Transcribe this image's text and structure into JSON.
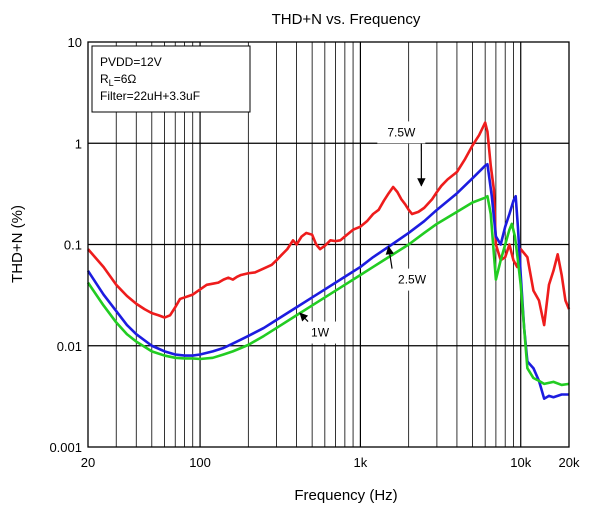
{
  "chart_data": {
    "type": "line",
    "title": "THD+N vs. Frequency",
    "xlabel": "Frequency (Hz)",
    "ylabel": "THD+N (%)",
    "x_scale": "log",
    "y_scale": "log",
    "xlim": [
      20,
      20000
    ],
    "ylim": [
      0.001,
      10
    ],
    "grid": true,
    "x_ticks": [
      {
        "value": 20,
        "label": "20"
      },
      {
        "value": 100,
        "label": "100"
      },
      {
        "value": 1000,
        "label": "1k"
      },
      {
        "value": 10000,
        "label": "10k"
      },
      {
        "value": 20000,
        "label": "20k"
      }
    ],
    "y_ticks": [
      {
        "value": 0.001,
        "label": "0.001"
      },
      {
        "value": 0.01,
        "label": "0.01"
      },
      {
        "value": 0.1,
        "label": "0.1"
      },
      {
        "value": 1,
        "label": "1"
      },
      {
        "value": 10,
        "label": "10"
      }
    ],
    "legend_box": {
      "placement": "top-left",
      "lines": [
        {
          "main": "PVDD=12V",
          "sub": ""
        },
        {
          "main": "R",
          "sub": "L",
          "after": "=6Ω"
        },
        {
          "main": "Filter=22uH+3.3uF",
          "sub": ""
        }
      ]
    },
    "series": [
      {
        "name": "7.5W",
        "color": "#ee1c1c",
        "points": [
          [
            20,
            0.09
          ],
          [
            25,
            0.06
          ],
          [
            30,
            0.04
          ],
          [
            35,
            0.031
          ],
          [
            40,
            0.026
          ],
          [
            45,
            0.023
          ],
          [
            50,
            0.021
          ],
          [
            55,
            0.02
          ],
          [
            60,
            0.019
          ],
          [
            65,
            0.02
          ],
          [
            70,
            0.024
          ],
          [
            75,
            0.029
          ],
          [
            80,
            0.03
          ],
          [
            85,
            0.031
          ],
          [
            90,
            0.032
          ],
          [
            100,
            0.036
          ],
          [
            110,
            0.04
          ],
          [
            120,
            0.041
          ],
          [
            130,
            0.042
          ],
          [
            140,
            0.045
          ],
          [
            150,
            0.047
          ],
          [
            160,
            0.045
          ],
          [
            170,
            0.048
          ],
          [
            180,
            0.05
          ],
          [
            200,
            0.052
          ],
          [
            220,
            0.053
          ],
          [
            250,
            0.058
          ],
          [
            280,
            0.063
          ],
          [
            300,
            0.07
          ],
          [
            320,
            0.078
          ],
          [
            350,
            0.09
          ],
          [
            380,
            0.11
          ],
          [
            400,
            0.1
          ],
          [
            430,
            0.12
          ],
          [
            460,
            0.13
          ],
          [
            500,
            0.125
          ],
          [
            530,
            0.1
          ],
          [
            560,
            0.09
          ],
          [
            600,
            0.097
          ],
          [
            650,
            0.11
          ],
          [
            700,
            0.108
          ],
          [
            750,
            0.11
          ],
          [
            800,
            0.12
          ],
          [
            900,
            0.14
          ],
          [
            1000,
            0.15
          ],
          [
            1100,
            0.17
          ],
          [
            1200,
            0.2
          ],
          [
            1300,
            0.22
          ],
          [
            1400,
            0.27
          ],
          [
            1500,
            0.32
          ],
          [
            1600,
            0.37
          ],
          [
            1700,
            0.33
          ],
          [
            1800,
            0.28
          ],
          [
            1900,
            0.25
          ],
          [
            2000,
            0.22
          ],
          [
            2100,
            0.2
          ],
          [
            2300,
            0.21
          ],
          [
            2500,
            0.23
          ],
          [
            2800,
            0.28
          ],
          [
            3000,
            0.33
          ],
          [
            3200,
            0.38
          ],
          [
            3500,
            0.44
          ],
          [
            4000,
            0.52
          ],
          [
            4500,
            0.7
          ],
          [
            5000,
            0.95
          ],
          [
            5500,
            1.2
          ],
          [
            6000,
            1.6
          ],
          [
            6200,
            1.3
          ],
          [
            6500,
            0.6
          ],
          [
            6800,
            0.35
          ],
          [
            7000,
            0.1
          ],
          [
            7500,
            0.07
          ],
          [
            8000,
            0.075
          ],
          [
            8500,
            0.1
          ],
          [
            9000,
            0.07
          ],
          [
            9500,
            0.06
          ],
          [
            10000,
            0.09
          ],
          [
            11000,
            0.075
          ],
          [
            12000,
            0.035
          ],
          [
            13000,
            0.028
          ],
          [
            14000,
            0.016
          ],
          [
            15000,
            0.04
          ],
          [
            16000,
            0.055
          ],
          [
            17000,
            0.08
          ],
          [
            18000,
            0.05
          ],
          [
            19000,
            0.028
          ],
          [
            20000,
            0.023
          ]
        ]
      },
      {
        "name": "2.5W",
        "color": "#1c1ce0",
        "points": [
          [
            20,
            0.055
          ],
          [
            25,
            0.032
          ],
          [
            30,
            0.022
          ],
          [
            35,
            0.016
          ],
          [
            40,
            0.013
          ],
          [
            50,
            0.01
          ],
          [
            60,
            0.0088
          ],
          [
            70,
            0.0082
          ],
          [
            80,
            0.008
          ],
          [
            90,
            0.008
          ],
          [
            100,
            0.0082
          ],
          [
            120,
            0.0088
          ],
          [
            140,
            0.0095
          ],
          [
            160,
            0.0105
          ],
          [
            180,
            0.0115
          ],
          [
            200,
            0.0125
          ],
          [
            250,
            0.015
          ],
          [
            300,
            0.018
          ],
          [
            400,
            0.024
          ],
          [
            500,
            0.03
          ],
          [
            600,
            0.036
          ],
          [
            800,
            0.048
          ],
          [
            1000,
            0.06
          ],
          [
            1200,
            0.075
          ],
          [
            1500,
            0.095
          ],
          [
            2000,
            0.13
          ],
          [
            2500,
            0.17
          ],
          [
            3000,
            0.22
          ],
          [
            4000,
            0.32
          ],
          [
            5000,
            0.45
          ],
          [
            6000,
            0.6
          ],
          [
            6200,
            0.62
          ],
          [
            6600,
            0.3
          ],
          [
            7000,
            0.12
          ],
          [
            7500,
            0.1
          ],
          [
            8000,
            0.15
          ],
          [
            8500,
            0.2
          ],
          [
            9000,
            0.27
          ],
          [
            9300,
            0.3
          ],
          [
            9600,
            0.15
          ],
          [
            10000,
            0.05
          ],
          [
            10500,
            0.015
          ],
          [
            11000,
            0.007
          ],
          [
            12000,
            0.006
          ],
          [
            13000,
            0.0045
          ],
          [
            14000,
            0.003
          ],
          [
            15000,
            0.0032
          ],
          [
            16000,
            0.0031
          ],
          [
            18000,
            0.0033
          ],
          [
            20000,
            0.0033
          ]
        ]
      },
      {
        "name": "1W",
        "color": "#22cc22",
        "points": [
          [
            20,
            0.042
          ],
          [
            25,
            0.025
          ],
          [
            30,
            0.017
          ],
          [
            35,
            0.013
          ],
          [
            40,
            0.011
          ],
          [
            50,
            0.0088
          ],
          [
            60,
            0.008
          ],
          [
            70,
            0.0076
          ],
          [
            80,
            0.0075
          ],
          [
            90,
            0.0075
          ],
          [
            100,
            0.0074
          ],
          [
            120,
            0.0076
          ],
          [
            140,
            0.0082
          ],
          [
            160,
            0.0088
          ],
          [
            180,
            0.0095
          ],
          [
            200,
            0.0102
          ],
          [
            250,
            0.0125
          ],
          [
            300,
            0.015
          ],
          [
            400,
            0.02
          ],
          [
            500,
            0.025
          ],
          [
            600,
            0.03
          ],
          [
            800,
            0.04
          ],
          [
            1000,
            0.05
          ],
          [
            1200,
            0.06
          ],
          [
            1500,
            0.075
          ],
          [
            2000,
            0.1
          ],
          [
            2500,
            0.13
          ],
          [
            3000,
            0.16
          ],
          [
            4000,
            0.21
          ],
          [
            5000,
            0.26
          ],
          [
            6000,
            0.29
          ],
          [
            6200,
            0.3
          ],
          [
            6500,
            0.2
          ],
          [
            7000,
            0.045
          ],
          [
            7500,
            0.07
          ],
          [
            8000,
            0.1
          ],
          [
            8500,
            0.14
          ],
          [
            8800,
            0.16
          ],
          [
            9200,
            0.12
          ],
          [
            9600,
            0.07
          ],
          [
            10000,
            0.04
          ],
          [
            10500,
            0.015
          ],
          [
            11000,
            0.006
          ],
          [
            12000,
            0.0048
          ],
          [
            13000,
            0.0045
          ],
          [
            14000,
            0.0042
          ],
          [
            16000,
            0.0044
          ],
          [
            18000,
            0.0041
          ],
          [
            20000,
            0.0042
          ]
        ]
      }
    ],
    "annotations": [
      {
        "text": "7.5W",
        "series": "7.5W",
        "label_at": [
          1800,
          1.28
        ],
        "arrow_to": [
          2400,
          0.38
        ]
      },
      {
        "text": "2.5W",
        "series": "2.5W",
        "label_at": [
          2100,
          0.045
        ],
        "arrow_to": [
          1500,
          0.095
        ]
      },
      {
        "text": "1W",
        "series": "1W",
        "label_at": [
          560,
          0.0135
        ],
        "arrow_to": [
          420,
          0.021
        ]
      }
    ]
  }
}
